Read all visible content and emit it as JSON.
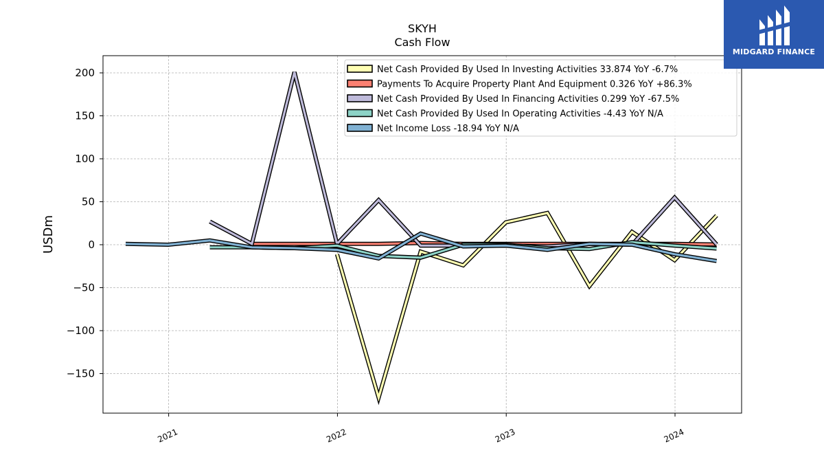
{
  "brand": {
    "name": "MIDGARD FINANCE",
    "color": "#2b59b0"
  },
  "chart_data": {
    "type": "line",
    "title": "SKYH",
    "subtitle": "Cash Flow",
    "xlabel": "",
    "ylabel": "USDm",
    "ylim": [
      -196,
      220
    ],
    "xlim": [
      "2020-08-12",
      "2024-05-24"
    ],
    "yticks": [
      200,
      150,
      100,
      50,
      0,
      -50,
      -100,
      -150
    ],
    "ytick_labels": [
      "200",
      "150",
      "100",
      "50",
      "0",
      "−50",
      "−100",
      "−150"
    ],
    "xticks": [
      "2021-01-01",
      "2022-01-01",
      "2023-01-01",
      "2024-01-01"
    ],
    "xtick_labels": [
      "2021",
      "2022",
      "2023",
      "2024"
    ],
    "grid": true,
    "legend_position": "top-right",
    "series": [
      {
        "name": "Net Cash Provided By Used In Investing Activities",
        "legend": "Net Cash Provided By Used In Investing Activities  33.874 YoY -6.7%",
        "color": "#ffffb3",
        "x": [
          "2021-12-31",
          "2022-03-31",
          "2022-06-30",
          "2022-09-30",
          "2022-12-31",
          "2023-03-31",
          "2023-06-30",
          "2023-09-30",
          "2023-12-31",
          "2024-03-31"
        ],
        "y": [
          -11,
          -178,
          -8,
          -24,
          26,
          37,
          -48,
          15,
          -18,
          34
        ]
      },
      {
        "name": "Payments To Acquire Property Plant And Equipment",
        "legend": "Payments To Acquire Property Plant And Equipment  0.326 YoY +86.3%",
        "color": "#fb8072",
        "x": [
          "2021-06-30",
          "2021-09-30",
          "2021-12-31",
          "2022-03-31",
          "2022-06-30",
          "2022-09-30",
          "2022-12-31",
          "2023-03-31",
          "2023-06-30",
          "2023-09-30",
          "2023-12-31",
          "2024-03-31"
        ],
        "y": [
          1,
          1,
          1,
          1,
          2,
          1,
          1,
          1,
          1,
          1,
          1,
          0.3
        ]
      },
      {
        "name": "Net Cash Provided By Used In Financing Activities",
        "legend": "Net Cash Provided By Used In Financing Activities  0.299 YoY -67.5%",
        "color": "#bebada",
        "x": [
          "2021-03-31",
          "2021-06-30",
          "2021-09-30",
          "2021-12-31",
          "2022-03-31",
          "2022-06-30",
          "2022-09-30",
          "2022-12-31",
          "2023-03-31",
          "2023-06-30",
          "2023-09-30",
          "2023-12-31",
          "2024-03-31"
        ],
        "y": [
          27,
          1,
          201,
          1,
          52,
          -1,
          -1,
          -1,
          -2,
          1,
          0,
          55,
          0.3
        ]
      },
      {
        "name": "Net Cash Provided By Used In Operating Activities",
        "legend": "Net Cash Provided By Used In Operating Activities  -4.43 YoY N/A",
        "color": "#8dd3c7",
        "x": [
          "2021-03-31",
          "2021-06-30",
          "2021-09-30",
          "2021-12-31",
          "2022-03-31",
          "2022-06-30",
          "2022-09-30",
          "2022-12-31",
          "2023-03-31",
          "2023-06-30",
          "2023-09-30",
          "2023-12-31",
          "2024-03-31"
        ],
        "y": [
          -3,
          -3,
          -4,
          -1,
          -13,
          -15,
          0,
          0,
          -4,
          -5,
          3,
          -1,
          -4.43
        ]
      },
      {
        "name": "Net Income Loss",
        "legend": "Net Income Loss  -18.94 YoY N/A",
        "color": "#80b1d3",
        "x": [
          "2020-09-30",
          "2020-12-31",
          "2021-03-31",
          "2021-06-30",
          "2021-09-30",
          "2021-12-31",
          "2022-03-31",
          "2022-06-30",
          "2022-09-30",
          "2022-12-31",
          "2023-03-31",
          "2023-06-30",
          "2023-09-30",
          "2023-12-31",
          "2024-03-31"
        ],
        "y": [
          1,
          0,
          5,
          -3,
          -4,
          -6,
          -16,
          13,
          -2,
          -1,
          -6,
          1,
          0,
          -11,
          -18.94
        ]
      }
    ]
  }
}
